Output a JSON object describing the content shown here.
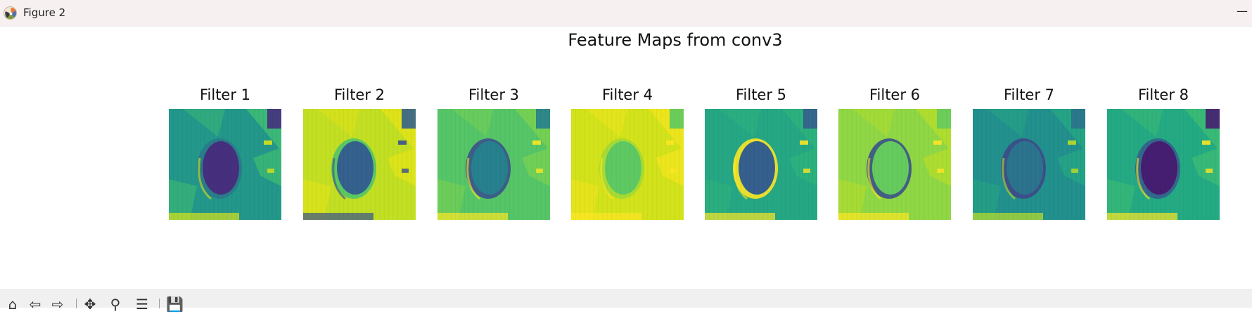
{
  "window": {
    "title": "Figure 2",
    "minimize_glyph": "—"
  },
  "figure": {
    "suptitle": "Feature Maps from conv3",
    "colormap": [
      "#440154",
      "#3b528b",
      "#21918c",
      "#5ec962",
      "#fde725"
    ],
    "panels": [
      {
        "title": "Filter 1",
        "bg": "#23978a",
        "blob": "#46307e",
        "rim": "#2a7a8a",
        "petal": "#3fbc73",
        "accent": "#d8e219"
      },
      {
        "title": "Filter 2",
        "bg": "#c2df23",
        "blob": "#34618d",
        "rim": "#52c569",
        "petal": "#e3e418",
        "accent": "#3b528b"
      },
      {
        "title": "Filter 3",
        "bg": "#55c568",
        "blob": "#27808e",
        "rim": "#3b528b",
        "petal": "#7ad151",
        "accent": "#fde725"
      },
      {
        "title": "Filter 4",
        "bg": "#d2e21b",
        "blob": "#5ec962",
        "rim": "#a2da37",
        "petal": "#f1e51d",
        "accent": "#fde725"
      },
      {
        "title": "Filter 5",
        "bg": "#26a784",
        "blob": "#355f8d",
        "rim": "#fde725",
        "petal": "#2eb37c",
        "accent": "#fde725"
      },
      {
        "title": "Filter 6",
        "bg": "#8fd744",
        "blob": "#65cb5e",
        "rim": "#3b528b",
        "petal": "#b5de2b",
        "accent": "#fde725"
      },
      {
        "title": "Filter 7",
        "bg": "#22908d",
        "blob": "#2c738e",
        "rim": "#3e4a89",
        "petal": "#26a784",
        "accent": "#bddf26"
      },
      {
        "title": "Filter 8",
        "bg": "#24aa83",
        "blob": "#461e71",
        "rim": "#355f8d",
        "petal": "#3dbc74",
        "accent": "#fde725"
      }
    ]
  },
  "toolbar": {
    "buttons": [
      {
        "name": "home-icon",
        "glyph": "⌂"
      },
      {
        "name": "back-icon",
        "glyph": "⇦"
      },
      {
        "name": "forward-icon",
        "glyph": "⇨"
      },
      {
        "name": "pan-icon",
        "glyph": "✥"
      },
      {
        "name": "zoom-icon",
        "glyph": "⚲"
      },
      {
        "name": "configure-subplots-icon",
        "glyph": "☰"
      },
      {
        "name": "save-icon",
        "glyph": "💾"
      }
    ]
  }
}
